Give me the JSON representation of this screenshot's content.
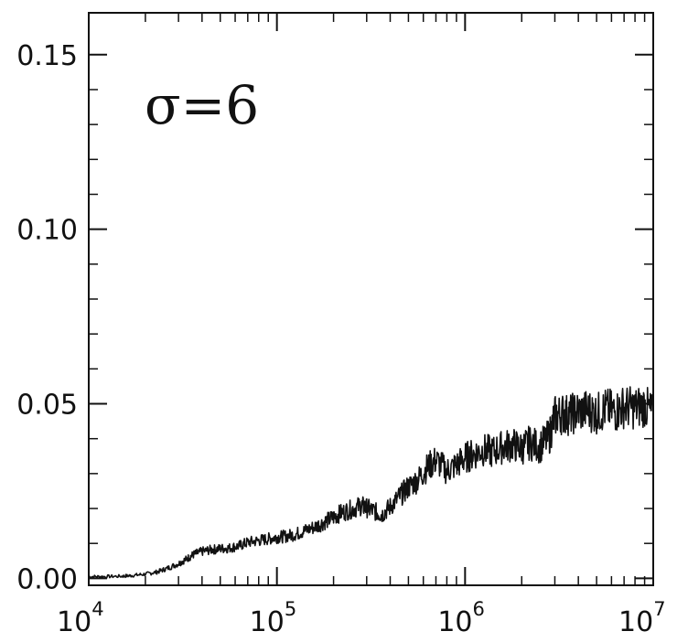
{
  "chart_data": {
    "type": "line",
    "annotation": "σ=6",
    "x_scale": "log",
    "xlim": [
      10000,
      10000000
    ],
    "ylim": [
      -0.002,
      0.162
    ],
    "x_ticks": [
      {
        "value": 10000,
        "base": "10",
        "exp": "4"
      },
      {
        "value": 100000,
        "base": "10",
        "exp": "5"
      },
      {
        "value": 1000000,
        "base": "10",
        "exp": "6"
      },
      {
        "value": 10000000,
        "base": "10",
        "exp": "7"
      }
    ],
    "y_ticks": [
      {
        "value": 0.0,
        "label": "0.00"
      },
      {
        "value": 0.05,
        "label": "0.05"
      },
      {
        "value": 0.1,
        "label": "0.10"
      },
      {
        "value": 0.15,
        "label": "0.15"
      }
    ],
    "grid": false,
    "line_color": "#111111",
    "series": [
      {
        "x": [
          10000,
          12000,
          15000,
          17000,
          20000,
          23000,
          26000,
          30000,
          33000,
          36000,
          40000,
          45000,
          50000,
          56000,
          63000,
          70000,
          80000,
          90000,
          100000,
          110000,
          125000,
          140000,
          160000,
          180000,
          200000,
          220000,
          250000,
          280000,
          300000,
          330000,
          360000,
          400000,
          450000,
          500000,
          560000,
          630000,
          700000,
          800000,
          900000,
          1000000,
          1100000,
          1250000,
          1400000,
          1600000,
          1800000,
          2000000,
          2200000,
          2500000,
          2800000,
          3000000,
          3300000,
          3600000,
          4000000,
          4500000,
          5000000,
          5600000,
          6300000,
          7000000,
          8000000,
          9000000,
          10000000
        ],
        "y": [
          0.0005,
          0.0005,
          0.0006,
          0.0008,
          0.0012,
          0.0018,
          0.0028,
          0.0042,
          0.0055,
          0.0068,
          0.0077,
          0.0082,
          0.0085,
          0.0087,
          0.0093,
          0.0103,
          0.0108,
          0.0113,
          0.0118,
          0.012,
          0.0126,
          0.0136,
          0.0148,
          0.0162,
          0.0175,
          0.0188,
          0.0198,
          0.0208,
          0.0202,
          0.0192,
          0.0182,
          0.0205,
          0.0235,
          0.0262,
          0.0282,
          0.0318,
          0.0338,
          0.0308,
          0.0325,
          0.0345,
          0.0355,
          0.0368,
          0.0362,
          0.0378,
          0.0382,
          0.0372,
          0.0388,
          0.0378,
          0.0405,
          0.0465,
          0.0472,
          0.0468,
          0.0478,
          0.0482,
          0.0472,
          0.0485,
          0.0478,
          0.0492,
          0.0488,
          0.0495,
          0.0468
        ]
      }
    ]
  }
}
